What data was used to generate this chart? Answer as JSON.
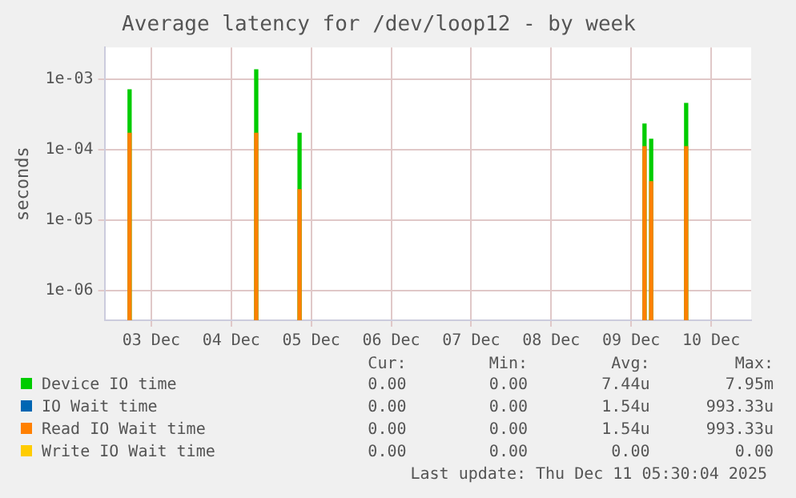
{
  "chart_data": {
    "type": "area",
    "title": "Average latency for /dev/loop12 - by week",
    "ylabel": "seconds",
    "log": "y",
    "grid": true,
    "legend": "bottom",
    "x": [
      "2025-12-03T05:30",
      "2025-12-04T19:30",
      "2025-12-05T08:30",
      "2025-12-09T16:00",
      "2025-12-09T18:00",
      "2025-12-10T04:30"
    ],
    "xlim": [
      "2025-12-02T22:00",
      "2025-12-11"
    ],
    "xticks": [
      {
        "value": "2025-12-03T12:00",
        "label": "03 Dec"
      },
      {
        "value": "2025-12-04T12:00",
        "label": "04 Dec"
      },
      {
        "value": "2025-12-05T12:00",
        "label": "05 Dec"
      },
      {
        "value": "2025-12-06T12:00",
        "label": "06 Dec"
      },
      {
        "value": "2025-12-07T12:00",
        "label": "07 Dec"
      },
      {
        "value": "2025-12-08T12:00",
        "label": "08 Dec"
      },
      {
        "value": "2025-12-09T12:00",
        "label": "09 Dec"
      },
      {
        "value": "2025-12-10T12:00",
        "label": "10 Dec"
      }
    ],
    "ylim": [
      3.8e-07,
      0.0028
    ],
    "yticks": [
      {
        "value": 1e-06,
        "label": "1e-06"
      },
      {
        "value": 1e-05,
        "label": "1e-05"
      },
      {
        "value": 0.0001,
        "label": "1e-04"
      },
      {
        "value": 0.001,
        "label": "1e-03"
      }
    ],
    "series": [
      {
        "name": "Device IO time",
        "color": "#00cc00",
        "values": [
          0.0007,
          0.00135,
          0.00017,
          0.00023,
          0.00014,
          0.00045
        ]
      },
      {
        "name": "IO Wait time",
        "color": "#0066b3",
        "values": [
          null,
          null,
          null,
          null,
          null,
          null
        ]
      },
      {
        "name": "Read IO Wait time",
        "color": "#ff8000",
        "values": [
          0.00017,
          0.00017,
          2.7e-05,
          0.00011,
          3.5e-05,
          0.00011
        ]
      },
      {
        "name": "Write IO Wait time",
        "color": "#ffcc00",
        "values": [
          null,
          null,
          null,
          null,
          null,
          null
        ]
      }
    ],
    "annotations": [
      "Cur:",
      "Min:",
      "Avg:",
      "Max:",
      "0.00",
      "0.00",
      "7.44u",
      "7.95m",
      "0.00",
      "0.00",
      "1.54u",
      "993.33u",
      "0.00",
      "0.00",
      "1.54u",
      "993.33u",
      "0.00",
      "0.00",
      "0.00",
      "0.00",
      "Last update: Thu Dec 11 05:30:04 2025"
    ]
  }
}
